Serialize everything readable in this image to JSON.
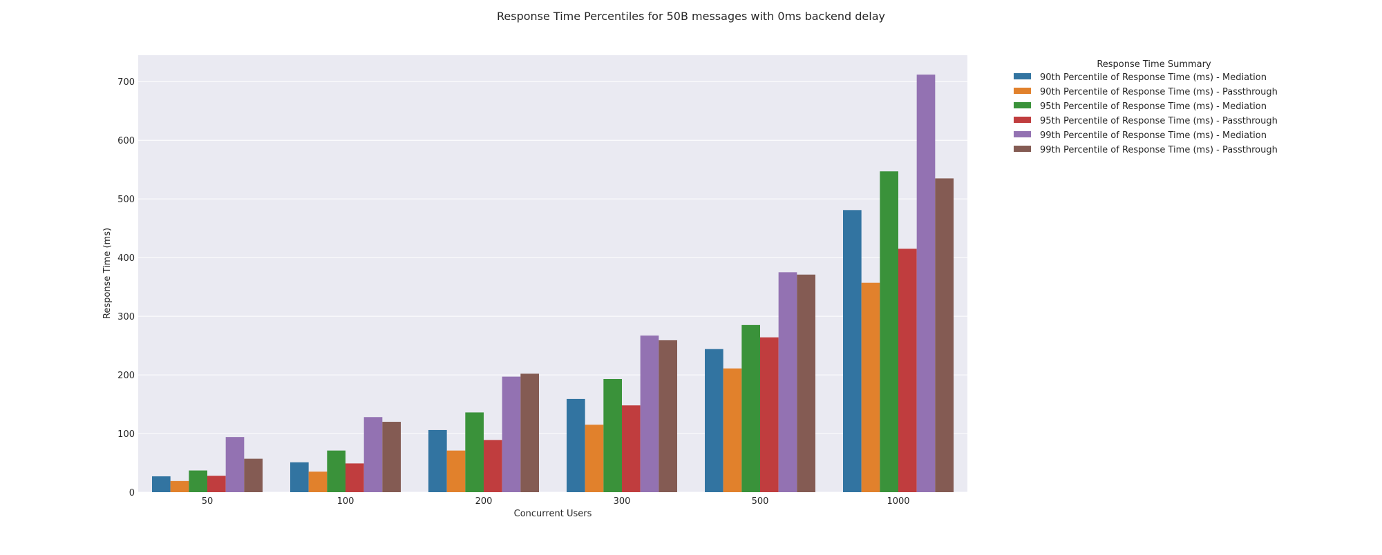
{
  "chart_data": {
    "type": "bar",
    "title": "Response Time Percentiles for 50B messages with 0ms backend delay",
    "xlabel": "Concurrent Users",
    "ylabel": "Response Time (ms)",
    "categories": [
      "50",
      "100",
      "200",
      "300",
      "500",
      "1000"
    ],
    "ylim": [
      0,
      745
    ],
    "yticks": [
      0,
      100,
      200,
      300,
      400,
      500,
      600,
      700
    ],
    "grid": true,
    "legend": {
      "title": "Response Time Summary",
      "placement": "outside-right"
    },
    "series": [
      {
        "name": "90th Percentile of Response Time (ms) - Mediation",
        "color": "#3274a1",
        "values": [
          27,
          51,
          106,
          159,
          244,
          481
        ]
      },
      {
        "name": "90th Percentile of Response Time (ms) - Passthrough",
        "color": "#e1812c",
        "values": [
          19,
          35,
          71,
          115,
          211,
          357
        ]
      },
      {
        "name": "95th Percentile of Response Time (ms) - Mediation",
        "color": "#3a923a",
        "values": [
          37,
          71,
          136,
          193,
          285,
          547
        ]
      },
      {
        "name": "95th Percentile of Response Time (ms) - Passthrough",
        "color": "#c03d3e",
        "values": [
          28,
          49,
          89,
          148,
          264,
          415
        ]
      },
      {
        "name": "99th Percentile of Response Time (ms) - Mediation",
        "color": "#9372b2",
        "values": [
          94,
          128,
          197,
          267,
          375,
          712
        ]
      },
      {
        "name": "99th Percentile of Response Time (ms) - Passthrough",
        "color": "#845b53",
        "values": [
          57,
          120,
          202,
          259,
          371,
          535
        ]
      }
    ]
  }
}
